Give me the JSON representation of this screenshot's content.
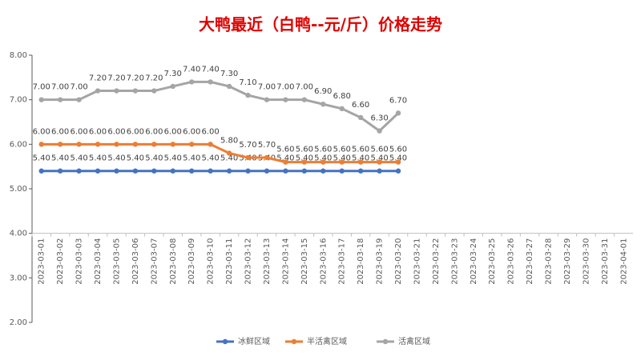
{
  "chart_data": {
    "type": "line",
    "title": "大鸭最近（白鸭--元/斤）价格走势",
    "categories": [
      "2023-03-01",
      "2023-03-02",
      "2023-03-03",
      "2023-03-04",
      "2023-03-05",
      "2023-03-06",
      "2023-03-07",
      "2023-03-08",
      "2023-03-09",
      "2023-03-10",
      "2023-03-11",
      "2023-03-12",
      "2023-03-13",
      "2023-03-14",
      "2023-03-15",
      "2023-03-16",
      "2023-03-17",
      "2023-03-18",
      "2023-03-19",
      "2023-03-20",
      "2023-03-21",
      "2023-03-22",
      "2023-03-23",
      "2023-03-24",
      "2023-03-25",
      "2023-03-26",
      "2023-03-27",
      "2023-03-28",
      "2023-03-29",
      "2023-03-30",
      "2023-03-31",
      "2023-04-01"
    ],
    "series": [
      {
        "name": "冰鲜区域",
        "color": "#4472c4",
        "values": [
          5.4,
          5.4,
          5.4,
          5.4,
          5.4,
          5.4,
          5.4,
          5.4,
          5.4,
          5.4,
          5.4,
          5.4,
          5.4,
          5.4,
          5.4,
          5.4,
          5.4,
          5.4,
          5.4,
          5.4,
          null,
          null,
          null,
          null,
          null,
          null,
          null,
          null,
          null,
          null,
          null,
          null
        ],
        "value_labels": [
          "5.40",
          "5.40",
          "5.40",
          "5.40",
          "5.40",
          "5.40",
          "5.40",
          "5.40",
          "5.40",
          "5.40",
          "5.40",
          "5.40",
          "5.40",
          "5.40",
          "5.40",
          "5.40",
          "5.40",
          "5.40",
          "5.40",
          "5.40",
          null,
          null,
          null,
          null,
          null,
          null,
          null,
          null,
          null,
          null,
          null,
          null
        ]
      },
      {
        "name": "半活禽区域",
        "color": "#ed7d31",
        "values": [
          6.0,
          6.0,
          6.0,
          6.0,
          6.0,
          6.0,
          6.0,
          6.0,
          6.0,
          6.0,
          5.8,
          5.7,
          5.7,
          5.6,
          5.6,
          5.6,
          5.6,
          5.6,
          5.6,
          5.6,
          null,
          null,
          null,
          null,
          null,
          null,
          null,
          null,
          null,
          null,
          null,
          null
        ],
        "value_labels": [
          "6.00",
          "6.00",
          "6.00",
          "6.00",
          "6.00",
          "6.00",
          "6.00",
          "6.00",
          "6.00",
          "6.00",
          "5.80",
          "5.70",
          "5.70",
          "5.60",
          "5.60",
          "5.60",
          "5.60",
          "5.60",
          "5.60",
          "5.60",
          null,
          null,
          null,
          null,
          null,
          null,
          null,
          null,
          null,
          null,
          null,
          null
        ]
      },
      {
        "name": "活禽区域",
        "color": "#a5a5a5",
        "values": [
          7.0,
          7.0,
          7.0,
          7.2,
          7.2,
          7.2,
          7.2,
          7.3,
          7.4,
          7.4,
          7.3,
          7.1,
          7.0,
          7.0,
          7.0,
          6.9,
          6.8,
          6.6,
          6.3,
          6.7,
          null,
          null,
          null,
          null,
          null,
          null,
          null,
          null,
          null,
          null,
          null,
          null
        ],
        "value_labels": [
          "7.00",
          "7.00",
          "7.00",
          "7.20",
          "7.20",
          "7.20",
          "7.20",
          "7.30",
          "7.40",
          "7.40",
          "7.30",
          "7.10",
          "7.00",
          "7.00",
          "7.00",
          "6.90",
          "6.80",
          "6.60",
          "6.30",
          "6.70",
          null,
          null,
          null,
          null,
          null,
          null,
          null,
          null,
          null,
          null,
          null,
          null
        ]
      }
    ],
    "ylim": [
      2,
      8
    ],
    "yticks": [
      {
        "value": 2,
        "label": "2.00"
      },
      {
        "value": 3,
        "label": "3.00"
      },
      {
        "value": 4,
        "label": "4.00"
      },
      {
        "value": 5,
        "label": "5.00"
      },
      {
        "value": 6,
        "label": "6.00"
      },
      {
        "value": 7,
        "label": "7.00"
      },
      {
        "value": 8,
        "label": "8.00"
      }
    ],
    "grid": false,
    "legend": "bottom"
  }
}
